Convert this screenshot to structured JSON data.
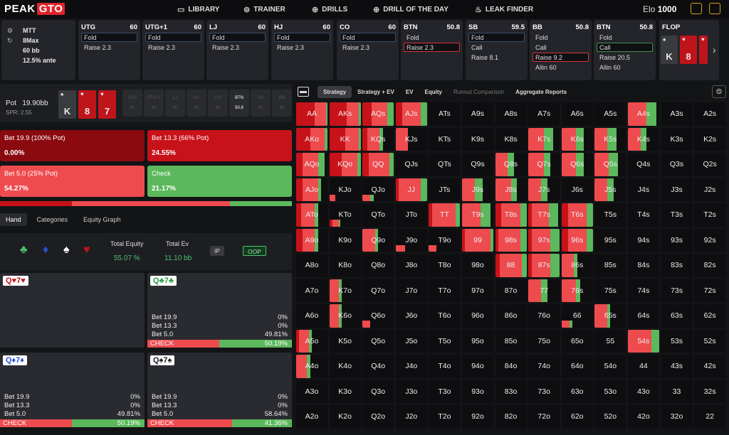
{
  "app": {
    "logo_a": "PEAK",
    "logo_b": "GTO",
    "elo_label": "Elo",
    "elo_value": "1000"
  },
  "nav": [
    {
      "label": "LIBRARY",
      "icon": "book-icon"
    },
    {
      "label": "TRAINER",
      "icon": "gamepad-icon"
    },
    {
      "label": "DRILLS",
      "icon": "target-icon"
    },
    {
      "label": "DRILL OF THE DAY",
      "icon": "plus-circle-icon"
    },
    {
      "label": "LEAK FINDER",
      "icon": "flame-icon"
    }
  ],
  "game": {
    "type": "MTT",
    "table": "8Max",
    "stack": "60 bb",
    "ante": "12.5% ante"
  },
  "positions": [
    {
      "name": "UTG",
      "stack": "60",
      "actions": [
        "Fold",
        "Raise 2.3"
      ],
      "sel": 0
    },
    {
      "name": "UTG+1",
      "stack": "60",
      "actions": [
        "Fold",
        "Raise 2.3"
      ],
      "sel": 0
    },
    {
      "name": "LJ",
      "stack": "60",
      "actions": [
        "Fold",
        "Raise 2.3"
      ],
      "sel": 0
    },
    {
      "name": "HJ",
      "stack": "60",
      "actions": [
        "Fold",
        "Raise 2.3"
      ],
      "sel": 0
    },
    {
      "name": "CO",
      "stack": "60",
      "actions": [
        "Fold",
        "Raise 2.3"
      ],
      "sel": 0
    },
    {
      "name": "BTN",
      "stack": "50.8",
      "actions": [
        "Fold",
        "Raise 2.3"
      ],
      "sel": 1
    },
    {
      "name": "SB",
      "stack": "59.5",
      "actions": [
        "Fold",
        "Call",
        "Raise 8.1"
      ],
      "sel": 0
    },
    {
      "name": "BB",
      "stack": "50.8",
      "actions": [
        "Fold",
        "Call",
        "Raise 9.2",
        "Allin 60"
      ],
      "sel": 2
    },
    {
      "name": "BTN",
      "stack": "50.8",
      "actions": [
        "Fold",
        "Call",
        "Raise 20.5",
        "Allin 60"
      ],
      "sel": 1
    }
  ],
  "flop": {
    "label": "FLOP",
    "cards": [
      {
        "rank": "K",
        "suit": "♠",
        "color": "#3a3b3f"
      },
      {
        "rank": "8",
        "suit": "♥",
        "color": "#c0141b"
      },
      {
        "rank": "7",
        "suit": "♥",
        "color": "#c0141b"
      }
    ]
  },
  "pot": {
    "label": "Pot",
    "value": "19.90bb",
    "spr": "SPR: 2.55",
    "board": [
      {
        "rank": "K",
        "suit": "♠",
        "color": "#3a3b3f"
      },
      {
        "rank": "8",
        "suit": "♥",
        "color": "#c0141b"
      },
      {
        "rank": "7",
        "suit": "♥",
        "color": "#c0141b"
      }
    ],
    "seats": [
      {
        "n": "UTG",
        "v": "60"
      },
      {
        "n": "UTG+1",
        "v": "60"
      },
      {
        "n": "LJ",
        "v": "60"
      },
      {
        "n": "HJ",
        "v": "60"
      },
      {
        "n": "CO",
        "v": "60"
      },
      {
        "n": "BTN",
        "v": "50.8"
      },
      {
        "n": "SB",
        "v": "60"
      },
      {
        "n": "BB",
        "v": "60"
      }
    ]
  },
  "actions": [
    {
      "label": "Bet 19.9 (100% Pot)",
      "pct": "0.00%",
      "color": "#8a0a0f"
    },
    {
      "label": "Bet 13.3 (66% Pot)",
      "pct": "24.55%",
      "color": "#c81219"
    },
    {
      "label": "Bet 5.0 (25% Pot)",
      "pct": "54.27%",
      "color": "#ee4b4f"
    },
    {
      "label": "Check",
      "pct": "21.17%",
      "color": "#5cb85c"
    }
  ],
  "freq": [
    0,
    24.55,
    54.27,
    21.17
  ],
  "left_tabs": [
    "Hand",
    "Categories",
    "Equity Graph"
  ],
  "equity": {
    "total_equity_label": "Total Equity",
    "total_equity": "55.07 %",
    "total_ev_label": "Total Ev",
    "total_ev": "11.10 bb",
    "ip": "IP",
    "oop": "OOP",
    "suits": [
      {
        "s": "♣",
        "c": "#4fc26b"
      },
      {
        "s": "♦",
        "c": "#2a4fd6"
      },
      {
        "s": "♠",
        "c": "#ffffff"
      },
      {
        "s": "♥",
        "c": "#c0141b"
      }
    ]
  },
  "hands": [
    {
      "title": "Q♥7♥",
      "color": "#c0141b",
      "rows": [],
      "bar": null
    },
    {
      "title": "Q♣7♣",
      "color": "#2b9a43",
      "rows": [
        [
          "Bet 19.9",
          "0%"
        ],
        [
          "Bet 13.3",
          "0%"
        ],
        [
          "Bet 5.0",
          "49.81%"
        ]
      ],
      "check": "CHECK",
      "check_pct": "50.19%",
      "bar": [
        49.81,
        50.19
      ]
    },
    {
      "title": "Q♦7♦",
      "color": "#2a4fd6",
      "rows": [
        [
          "Bet 19.9",
          "0%"
        ],
        [
          "Bet 13.3",
          "0%"
        ],
        [
          "Bet 5.0",
          "49.81%"
        ]
      ],
      "check": "CHECK",
      "check_pct": "50.19%",
      "bar": [
        49.81,
        50.19
      ]
    },
    {
      "title": "Q♠7♠",
      "color": "#222",
      "rows": [
        [
          "Bet 19.9",
          "0%"
        ],
        [
          "Bet 13.3",
          "0%"
        ],
        [
          "Bet 5.0",
          "58.64%"
        ]
      ],
      "check": "CHECK",
      "check_pct": "41.36%",
      "bar": [
        58.64,
        41.36
      ]
    }
  ],
  "right_tabs": [
    "Strategy",
    "Strategy + EV",
    "EV",
    "Equity",
    "Runout Comparison",
    "Aggregate Reports"
  ],
  "colors": {
    "bet100": "#8a0a0f",
    "bet66": "#c81219",
    "bet25": "#ee4b4f",
    "check": "#5cb85c"
  },
  "grid": [
    [
      "AA",
      "AKs",
      "AQs",
      "AJs",
      "ATs",
      "A9s",
      "A8s",
      "A7s",
      "A6s",
      "A5s",
      "A4s",
      "A3s",
      "A2s"
    ],
    [
      "AKo",
      "KK",
      "KQs",
      "KJs",
      "KTs",
      "K9s",
      "K8s",
      "K7s",
      "K6s",
      "K5s",
      "K4s",
      "K3s",
      "K2s"
    ],
    [
      "AQo",
      "KQo",
      "QQ",
      "QJs",
      "QTs",
      "Q9s",
      "Q8s",
      "Q7s",
      "Q6s",
      "Q5s",
      "Q4s",
      "Q3s",
      "Q2s"
    ],
    [
      "AJo",
      "KJo",
      "QJo",
      "JJ",
      "JTs",
      "J9s",
      "J8s",
      "J7s",
      "J6s",
      "J5s",
      "J4s",
      "J3s",
      "J2s"
    ],
    [
      "ATo",
      "KTo",
      "QTo",
      "JTo",
      "TT",
      "T9s",
      "T8s",
      "T7s",
      "T6s",
      "T5s",
      "T4s",
      "T3s",
      "T2s"
    ],
    [
      "A9o",
      "K9o",
      "Q9o",
      "J9o",
      "T9o",
      "99",
      "98s",
      "97s",
      "96s",
      "95s",
      "94s",
      "93s",
      "92s"
    ],
    [
      "A8o",
      "K8o",
      "Q8o",
      "J8o",
      "T8o",
      "98o",
      "88",
      "87s",
      "86s",
      "85s",
      "84s",
      "83s",
      "82s"
    ],
    [
      "A7o",
      "K7o",
      "Q7o",
      "J7o",
      "T7o",
      "97o",
      "87o",
      "77",
      "76s",
      "75s",
      "74s",
      "73s",
      "72s"
    ],
    [
      "A6o",
      "K6o",
      "Q6o",
      "J6o",
      "T6o",
      "96o",
      "86o",
      "76o",
      "66",
      "65s",
      "64s",
      "63s",
      "62s"
    ],
    [
      "A5o",
      "K5o",
      "Q5o",
      "J5o",
      "T5o",
      "95o",
      "85o",
      "75o",
      "65o",
      "55",
      "54s",
      "53s",
      "52s"
    ],
    [
      "A4o",
      "K4o",
      "Q4o",
      "J4o",
      "T4o",
      "94o",
      "84o",
      "74o",
      "64o",
      "54o",
      "44",
      "43s",
      "42s"
    ],
    [
      "A3o",
      "K3o",
      "Q3o",
      "J3o",
      "T3o",
      "93o",
      "83o",
      "73o",
      "63o",
      "53o",
      "43o",
      "33",
      "32s"
    ],
    [
      "A2o",
      "K2o",
      "Q2o",
      "J2o",
      "T2o",
      "92o",
      "82o",
      "72o",
      "62o",
      "52o",
      "42o",
      "32o",
      "22"
    ]
  ],
  "strategy": {
    "AA": [
      0,
      60,
      35,
      5
    ],
    "AKs": [
      0,
      55,
      40,
      5
    ],
    "AQs": [
      0,
      30,
      50,
      20
    ],
    "AJs": [
      0,
      20,
      60,
      20
    ],
    "AKo": [
      0,
      45,
      45,
      10
    ],
    "KK": [
      0,
      50,
      45,
      5
    ],
    "KQs": [
      0,
      15,
      40,
      10
    ],
    "KJs": [
      0,
      0,
      40,
      0
    ],
    "AQo": [
      0,
      20,
      50,
      20
    ],
    "KQo": [
      0,
      40,
      50,
      10
    ],
    "QQ": [
      0,
      20,
      65,
      15
    ],
    "AJo": [
      0,
      20,
      50,
      10
    ],
    "KJo": [
      0,
      0,
      20,
      0
    ],
    "QJo": [
      0,
      0,
      25,
      10
    ],
    "JJ": [
      0,
      10,
      70,
      20
    ],
    "ATo": [
      0,
      15,
      45,
      10
    ],
    "KTo": [
      0,
      10,
      20,
      5
    ],
    "TT": [
      0,
      10,
      75,
      15
    ],
    "A9o": [
      0,
      20,
      40,
      10
    ],
    "Q9o": [
      0,
      0,
      40,
      10
    ],
    "J9o": [
      0,
      0,
      30,
      0
    ],
    "T9o": [
      0,
      0,
      25,
      0
    ],
    "99": [
      0,
      10,
      80,
      10
    ],
    "98s": [
      0,
      10,
      70,
      20
    ],
    "97s": [
      0,
      10,
      60,
      30
    ],
    "96s": [
      0,
      20,
      60,
      20
    ],
    "88": [
      0,
      15,
      70,
      15
    ],
    "87s": [
      0,
      10,
      60,
      30
    ],
    "86s": [
      0,
      0,
      40,
      10
    ],
    "K7o": [
      0,
      0,
      30,
      10
    ],
    "77": [
      0,
      0,
      40,
      20
    ],
    "76s": [
      0,
      0,
      45,
      15
    ],
    "K6o": [
      0,
      0,
      30,
      10
    ],
    "Q6o": [
      0,
      0,
      25,
      0
    ],
    "66": [
      0,
      0,
      25,
      10
    ],
    "65s": [
      0,
      0,
      40,
      10
    ],
    "A5o": [
      0,
      10,
      30,
      10
    ],
    "54s": [
      0,
      0,
      75,
      25
    ],
    "A4o": [
      0,
      0,
      35,
      10
    ],
    "K7s": [
      0,
      0,
      50,
      30
    ],
    "K6s": [
      0,
      0,
      45,
      25
    ],
    "K5s": [
      0,
      0,
      40,
      30
    ],
    "K4s": [
      0,
      0,
      40,
      20
    ],
    "A4s": [
      0,
      0,
      60,
      30
    ],
    "Q8s": [
      0,
      0,
      40,
      20
    ],
    "Q7s": [
      0,
      0,
      50,
      20
    ],
    "Q6s": [
      0,
      0,
      45,
      25
    ],
    "Q5s": [
      0,
      0,
      45,
      30
    ],
    "J9s": [
      0,
      0,
      40,
      25
    ],
    "J8s": [
      0,
      0,
      50,
      20
    ],
    "J7s": [
      0,
      0,
      40,
      20
    ],
    "J5s": [
      0,
      0,
      40,
      20
    ],
    "T9s": [
      0,
      0,
      60,
      30
    ],
    "T8s": [
      0,
      20,
      60,
      20
    ],
    "T7s": [
      0,
      10,
      55,
      30
    ],
    "T6s": [
      0,
      20,
      60,
      20
    ],
    "A9s": [
      0,
      0,
      0,
      0
    ],
    "A8s": [
      0,
      0,
      0,
      0
    ]
  }
}
